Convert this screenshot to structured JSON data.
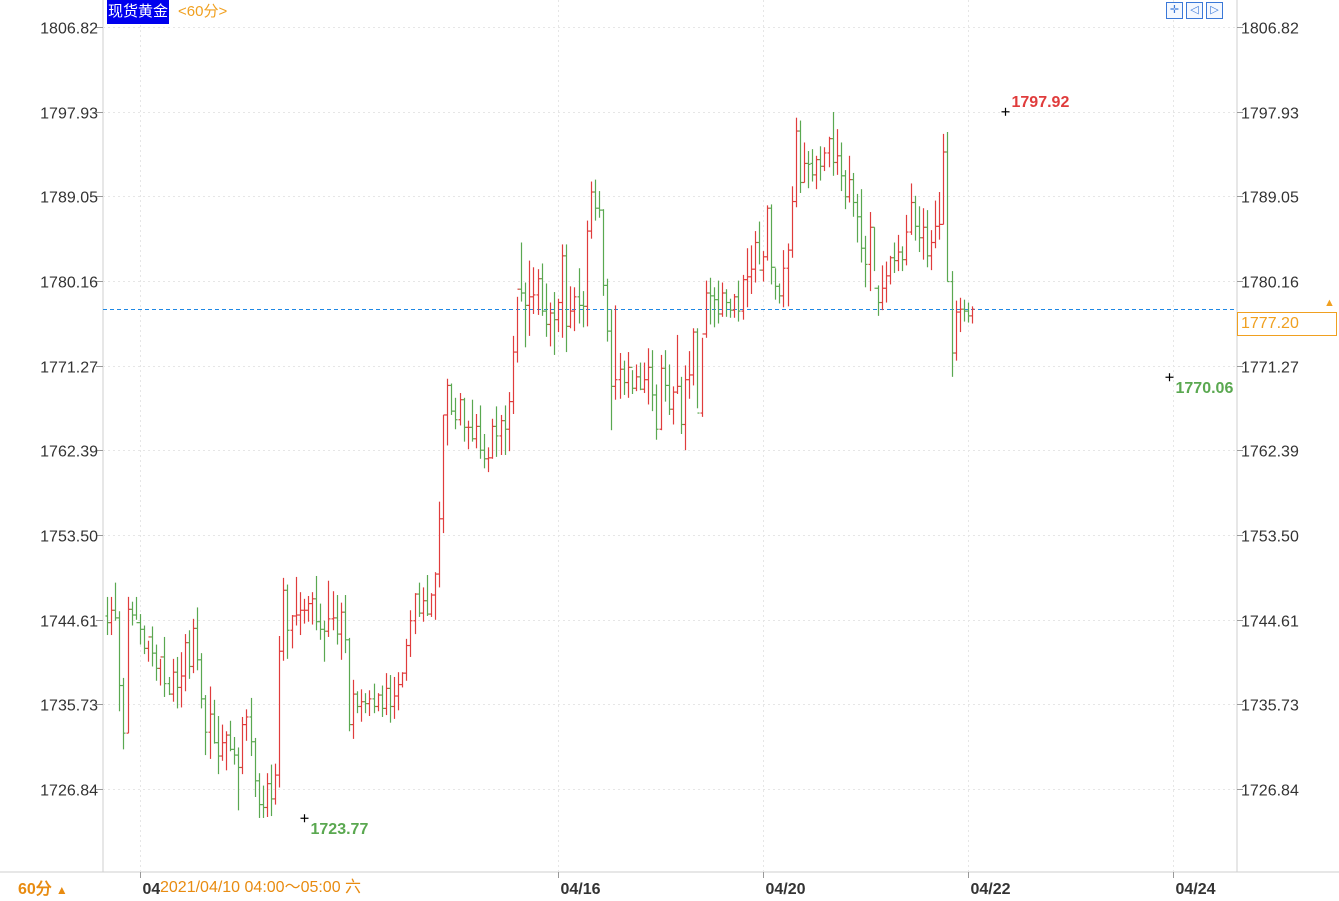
{
  "header": {
    "instrument_label": "现货黄金",
    "period_link": "<60分>",
    "toolbar_icons": [
      "crosshair-icon",
      "prev-icon",
      "next-icon"
    ]
  },
  "footer": {
    "period_selector": "60分",
    "period_arrow": "▲",
    "hover_time": "2021/04/10 04:00～05:00 六"
  },
  "current_price": {
    "label": "1777.20",
    "value": 1777.2,
    "color": "#f0a020"
  },
  "colors": {
    "up": "#e03c3c",
    "down": "#5aa850",
    "grid": "#e6e6e6",
    "current_line": "#1e88e5",
    "axis_text": "#333333",
    "high_label": "#e03c3c",
    "low_label": "#5aa850"
  },
  "chart_data": {
    "type": "ohlc",
    "title": "现货黄金",
    "interval": "60分",
    "ylim": [
      1717.9,
      1806.82
    ],
    "y_ticks": [
      1806.82,
      1797.93,
      1789.05,
      1780.16,
      1771.27,
      1762.39,
      1753.5,
      1744.61,
      1735.73,
      1726.84
    ],
    "y_tick_labels": [
      "1806.82",
      "1797.93",
      "1789.05",
      "1780.16",
      "1771.27",
      "1762.39",
      "1753.50",
      "1744.61",
      "1735.73",
      "1726.84"
    ],
    "x_labels": [
      {
        "label": "04",
        "bar": 8
      },
      {
        "label": "04/16",
        "bar": 110
      },
      {
        "label": "04/20",
        "bar": 160
      },
      {
        "label": "04/22",
        "bar": 210
      },
      {
        "label": "04/24",
        "bar": 260
      }
    ],
    "annotations": [
      {
        "label": "1797.92",
        "value": 1797.92,
        "kind": "high",
        "bar": 219
      },
      {
        "label": "1770.06",
        "value": 1770.06,
        "kind": "low",
        "bar": 259
      },
      {
        "label": "1723.77",
        "value": 1723.77,
        "kind": "low",
        "bar": 48
      }
    ],
    "bars": [
      [
        1745,
        1747,
        1743,
        1744.3
      ],
      [
        1744.3,
        1747,
        1743,
        1745.6
      ],
      [
        1745.6,
        1748.5,
        1744.5,
        1744.8
      ],
      [
        1744.8,
        1745.5,
        1735,
        1737.7
      ],
      [
        1737.7,
        1738.5,
        1731,
        1732.7
      ],
      [
        1732.7,
        1747,
        1732.7,
        1745.7
      ],
      [
        1745.7,
        1746.5,
        1744,
        1745.1
      ],
      [
        1745.1,
        1747,
        1744.6,
        1744.3
      ],
      [
        1744.3,
        1745.2,
        1742,
        1743.6
      ],
      [
        1743.6,
        1744,
        1741,
        1741.6
      ],
      [
        1741.6,
        1742.4,
        1740.2,
        1742.8
      ],
      [
        1742.8,
        1743.9,
        1739.7,
        1741.1
      ],
      [
        1741.1,
        1742,
        1738.2,
        1739.5
      ],
      [
        1739.5,
        1740.5,
        1737.7,
        1740.7
      ],
      [
        1740.7,
        1742.8,
        1736.5,
        1737.9
      ],
      [
        1737.9,
        1738.6,
        1736.7,
        1736.8
      ],
      [
        1736.8,
        1740.5,
        1736,
        1739.1
      ],
      [
        1739.1,
        1740.7,
        1735.3,
        1737.5
      ],
      [
        1737.5,
        1741.2,
        1735.4,
        1738.7
      ],
      [
        1738.7,
        1743.1,
        1737.1,
        1742.2
      ],
      [
        1742.2,
        1743.5,
        1738.4,
        1739.7
      ],
      [
        1739.7,
        1744.7,
        1739,
        1743.7
      ],
      [
        1743.7,
        1745.9,
        1739.3,
        1740.4
      ],
      [
        1740.4,
        1741.1,
        1735.3,
        1736.3
      ],
      [
        1736.3,
        1736.7,
        1730.4,
        1732.8
      ],
      [
        1732.8,
        1737.6,
        1730,
        1734.7
      ],
      [
        1734.7,
        1736.2,
        1731.6,
        1731.7
      ],
      [
        1731.7,
        1734.5,
        1728.4,
        1730.3
      ],
      [
        1730.3,
        1733.6,
        1729.8,
        1731.7
      ],
      [
        1731.7,
        1732.9,
        1728.8,
        1732.5
      ],
      [
        1732.5,
        1734,
        1730.8,
        1731
      ],
      [
        1731,
        1732.3,
        1729.4,
        1730.4
      ],
      [
        1730.4,
        1731.2,
        1724.6,
        1729.1
      ],
      [
        1729.1,
        1734.4,
        1728.4,
        1733.6
      ],
      [
        1733.6,
        1735.2,
        1731.9,
        1734.4
      ],
      [
        1734.4,
        1736.4,
        1730.3,
        1731.8
      ],
      [
        1731.8,
        1732.2,
        1726,
        1727.7
      ],
      [
        1727.7,
        1728.5,
        1723.8,
        1725.2
      ],
      [
        1725.2,
        1727.2,
        1723.8,
        1724.9
      ],
      [
        1724.9,
        1728.5,
        1723.9,
        1727.4
      ],
      [
        1727.4,
        1729.4,
        1724,
        1725.8
      ],
      [
        1725.8,
        1729.5,
        1725.2,
        1728.3
      ],
      [
        1728.3,
        1742.9,
        1727,
        1741.3
      ],
      [
        1741.3,
        1749,
        1740.3,
        1747.7
      ],
      [
        1747.7,
        1748.3,
        1740.5,
        1743.5
      ],
      [
        1743.5,
        1745.1,
        1741.6,
        1745
      ],
      [
        1745,
        1749.1,
        1744,
        1745.1
      ],
      [
        1745.1,
        1747.5,
        1743,
        1745.6
      ],
      [
        1745.6,
        1746.8,
        1744.2,
        1745.6
      ],
      [
        1745.6,
        1747.1,
        1744.4,
        1746.3
      ],
      [
        1746.3,
        1747.5,
        1744.1,
        1746.8
      ],
      [
        1746.8,
        1749.2,
        1743.5,
        1744.4
      ],
      [
        1744.4,
        1746.3,
        1742.5,
        1743.6
      ],
      [
        1743.6,
        1744.5,
        1740.2,
        1743.4
      ],
      [
        1743.4,
        1748.7,
        1742.8,
        1744.7
      ],
      [
        1744.7,
        1747.6,
        1743.5,
        1744.8
      ],
      [
        1744.8,
        1747.2,
        1742,
        1743.1
      ],
      [
        1743.1,
        1746.4,
        1740.4,
        1745.4
      ],
      [
        1745.4,
        1747.2,
        1741.1,
        1742.5
      ],
      [
        1742.5,
        1742.7,
        1732.9,
        1733.6
      ],
      [
        1733.6,
        1738.3,
        1732.1,
        1736.8
      ],
      [
        1736.8,
        1737.1,
        1734.8,
        1735.5
      ],
      [
        1735.5,
        1737.3,
        1733.9,
        1736
      ],
      [
        1736,
        1736.9,
        1734.8,
        1735.8
      ],
      [
        1735.8,
        1737.2,
        1734.5,
        1736.3
      ],
      [
        1736.3,
        1737.9,
        1734.8,
        1735.5
      ],
      [
        1735.5,
        1736.9,
        1735,
        1736.7
      ],
      [
        1736.7,
        1737.7,
        1734.4,
        1735.3
      ],
      [
        1735.3,
        1739,
        1734.6,
        1737.4
      ],
      [
        1737.4,
        1738.8,
        1733.8,
        1735.5
      ],
      [
        1735.5,
        1738.6,
        1734.2,
        1736.6
      ],
      [
        1736.6,
        1739.1,
        1735.1,
        1737.8
      ],
      [
        1737.8,
        1739.1,
        1737.5,
        1739
      ],
      [
        1739,
        1742.6,
        1738.2,
        1741.9
      ],
      [
        1741.9,
        1745.6,
        1740.7,
        1744.5
      ],
      [
        1744.5,
        1747.4,
        1743.1,
        1747.3
      ],
      [
        1747.3,
        1748.5,
        1744.9,
        1745.3
      ],
      [
        1745.3,
        1748,
        1744.4,
        1746.6
      ],
      [
        1746.6,
        1749.3,
        1745,
        1745.2
      ],
      [
        1745.2,
        1747.4,
        1744.9,
        1747.2
      ],
      [
        1747.2,
        1749.6,
        1744.6,
        1749.4
      ],
      [
        1749.4,
        1757,
        1748,
        1755.2
      ],
      [
        1755.2,
        1766.1,
        1753.7,
        1766.1
      ],
      [
        1766.1,
        1769.9,
        1762.9,
        1769.2
      ],
      [
        1769.2,
        1769.4,
        1766.1,
        1766.5
      ],
      [
        1766.5,
        1767.9,
        1764.6,
        1765.6
      ],
      [
        1765.6,
        1768.4,
        1765,
        1767.7
      ],
      [
        1767.7,
        1767.9,
        1763.3,
        1764.8
      ],
      [
        1764.8,
        1765.5,
        1762.5,
        1764.8
      ],
      [
        1764.8,
        1767.7,
        1763.3,
        1763.6
      ],
      [
        1763.6,
        1766.2,
        1762.6,
        1764.9
      ],
      [
        1764.9,
        1767.1,
        1761.5,
        1762.4
      ],
      [
        1762.4,
        1764.1,
        1760.5,
        1761.5
      ],
      [
        1761.5,
        1762.7,
        1760.1,
        1761.6
      ],
      [
        1761.6,
        1765.7,
        1761.5,
        1764.9
      ],
      [
        1764.9,
        1767,
        1761.7,
        1763.9
      ],
      [
        1763.9,
        1766.1,
        1761.9,
        1765.5
      ],
      [
        1765.5,
        1767.1,
        1761.9,
        1764.6
      ],
      [
        1764.6,
        1768.5,
        1762.3,
        1767.5
      ],
      [
        1767.5,
        1774.4,
        1766.2,
        1772.7
      ],
      [
        1772.7,
        1778.5,
        1771.6,
        1779.3
      ],
      [
        1779.3,
        1784.2,
        1778,
        1778.9
      ],
      [
        1778.9,
        1780,
        1773.2,
        1777.6
      ],
      [
        1777.6,
        1782.3,
        1774.4,
        1778.5
      ],
      [
        1778.5,
        1781.6,
        1776.7,
        1778.7
      ],
      [
        1778.7,
        1781.4,
        1776.6,
        1780.4
      ],
      [
        1780.4,
        1782,
        1776.5,
        1777
      ],
      [
        1777,
        1779.9,
        1774.3,
        1775.6
      ],
      [
        1775.6,
        1777.9,
        1773.3,
        1776.8
      ],
      [
        1776.8,
        1779,
        1772.4,
        1776.1
      ],
      [
        1776.1,
        1778.3,
        1774.8,
        1777.9
      ],
      [
        1777.9,
        1784,
        1774.2,
        1782.8
      ],
      [
        1782.8,
        1784,
        1772.7,
        1775.4
      ],
      [
        1775.4,
        1779.6,
        1775.2,
        1777
      ],
      [
        1777,
        1779.5,
        1774.9,
        1778.5
      ],
      [
        1778.5,
        1781.5,
        1775.7,
        1777.6
      ],
      [
        1777.6,
        1779.1,
        1775.3,
        1777.5
      ],
      [
        1777.5,
        1786.5,
        1775.4,
        1785.4
      ],
      [
        1785.4,
        1790.6,
        1784.6,
        1789.5
      ],
      [
        1789.5,
        1790.8,
        1786.5,
        1787.8
      ],
      [
        1787.8,
        1789.6,
        1786.8,
        1787.6
      ],
      [
        1787.6,
        1787.7,
        1778.6,
        1779.7
      ],
      [
        1779.7,
        1780.4,
        1773.8,
        1774.9
      ],
      [
        1774.9,
        1777.2,
        1764.5,
        1769.1
      ],
      [
        1769.1,
        1777.6,
        1767.7,
        1769.8
      ],
      [
        1769.8,
        1772.6,
        1767.8,
        1770.9
      ],
      [
        1770.9,
        1771.8,
        1768.2,
        1769.5
      ],
      [
        1769.5,
        1772.7,
        1767.9,
        1771.1
      ],
      [
        1771.1,
        1770.8,
        1768.3,
        1768.9
      ],
      [
        1768.9,
        1771.4,
        1768.6,
        1770.1
      ],
      [
        1770.1,
        1771.6,
        1768.7,
        1768.8
      ],
      [
        1768.8,
        1771.6,
        1768.4,
        1769.8
      ],
      [
        1769.8,
        1773.1,
        1767.2,
        1771.1
      ],
      [
        1771.1,
        1772.9,
        1766.5,
        1768.2
      ],
      [
        1768.2,
        1769.3,
        1763.5,
        1764.6
      ],
      [
        1764.6,
        1772.4,
        1764.5,
        1771
      ],
      [
        1771,
        1772.9,
        1767.5,
        1769.2
      ],
      [
        1769.2,
        1771.4,
        1766.1,
        1766.7
      ],
      [
        1766.7,
        1769.1,
        1765.1,
        1768.5
      ],
      [
        1768.5,
        1774.5,
        1768.3,
        1769.1
      ],
      [
        1769.1,
        1770.1,
        1764.1,
        1765.1
      ],
      [
        1765.1,
        1771.3,
        1762.4,
        1769.8
      ],
      [
        1769.8,
        1772.8,
        1767.8,
        1770.3
      ],
      [
        1770.3,
        1775.2,
        1769.2,
        1774.8
      ],
      [
        1774.8,
        1775.2,
        1766.8,
        1766.3
      ],
      [
        1766.3,
        1774.2,
        1765.9,
        1774.6
      ],
      [
        1774.6,
        1780.2,
        1774.2,
        1778.9
      ],
      [
        1778.9,
        1780.5,
        1775.6,
        1778.6
      ],
      [
        1778.6,
        1779.5,
        1775.3,
        1778.2
      ],
      [
        1778.2,
        1780.2,
        1775.7,
        1776.7
      ],
      [
        1776.7,
        1780,
        1776.4,
        1778.9
      ],
      [
        1778.9,
        1779.3,
        1776.4,
        1777.9
      ],
      [
        1777.9,
        1778.3,
        1776.3,
        1777.1
      ],
      [
        1777.1,
        1778.8,
        1776.3,
        1778.5
      ],
      [
        1778.5,
        1780.2,
        1775.9,
        1777
      ],
      [
        1777,
        1780.8,
        1776.1,
        1780.3
      ],
      [
        1780.3,
        1783.6,
        1777.4,
        1780.6
      ],
      [
        1780.6,
        1783.9,
        1778.8,
        1781.4
      ],
      [
        1781.4,
        1785.4,
        1780,
        1784.2
      ],
      [
        1784.2,
        1786.4,
        1781.9,
        1781.3
      ],
      [
        1781.3,
        1783.3,
        1780.1,
        1782.7
      ],
      [
        1782.7,
        1788.1,
        1782.3,
        1787.8
      ],
      [
        1787.8,
        1788.2,
        1779.8,
        1781.6
      ],
      [
        1781.6,
        1781.5,
        1778.2,
        1779.6
      ],
      [
        1779.6,
        1779.9,
        1777.8,
        1778.6
      ],
      [
        1778.6,
        1783.4,
        1777.4,
        1781.5
      ],
      [
        1781.5,
        1784.1,
        1777.5,
        1783.4
      ],
      [
        1783.4,
        1790.1,
        1782.6,
        1788.5
      ],
      [
        1788.5,
        1797.3,
        1787.9,
        1795.9
      ],
      [
        1795.9,
        1797,
        1789.4,
        1790.5
      ],
      [
        1790.5,
        1794.7,
        1790.5,
        1792.5
      ],
      [
        1792.5,
        1793.8,
        1789.9,
        1792.4
      ],
      [
        1792.5,
        1794,
        1790.6,
        1791.3
      ],
      [
        1791.3,
        1793.3,
        1789.8,
        1792.9
      ],
      [
        1792.9,
        1794.3,
        1790.7,
        1792.2
      ],
      [
        1792.2,
        1794.2,
        1791.7,
        1793.6
      ],
      [
        1793.6,
        1795.3,
        1792.1,
        1795.1
      ],
      [
        1795.1,
        1797.9,
        1791.2,
        1792.6
      ],
      [
        1792.6,
        1796.1,
        1791.3,
        1793.3
      ],
      [
        1793.3,
        1794.7,
        1789.6,
        1791.2
      ],
      [
        1791.2,
        1791.8,
        1787.7,
        1789
      ],
      [
        1789,
        1793.3,
        1788.4,
        1790.8
      ],
      [
        1790.8,
        1791.5,
        1786.9,
        1788.4
      ],
      [
        1788.4,
        1789.3,
        1784.2,
        1786.9
      ],
      [
        1786.9,
        1789.8,
        1782.1,
        1783.6
      ],
      [
        1783.6,
        1784.9,
        1779.5,
        1781.9
      ],
      [
        1781.9,
        1787.4,
        1779.1,
        1785.8
      ],
      [
        1785.8,
        1785.8,
        1781.2,
        1779.4
      ],
      [
        1779.4,
        1779.7,
        1776.5,
        1777.9
      ],
      [
        1777.9,
        1781.8,
        1777.1,
        1779.4
      ],
      [
        1779.4,
        1782.2,
        1777.9,
        1780.7
      ],
      [
        1780.7,
        1782.8,
        1779.8,
        1782.6
      ],
      [
        1782.6,
        1784.2,
        1781,
        1782.3
      ],
      [
        1782.3,
        1785,
        1781.2,
        1783.2
      ],
      [
        1783.2,
        1783.8,
        1781.2,
        1782.4
      ],
      [
        1782.4,
        1787.1,
        1781.8,
        1785.3
      ],
      [
        1785.3,
        1790.4,
        1785,
        1788.4
      ],
      [
        1788.4,
        1789.1,
        1784.4,
        1785.9
      ],
      [
        1785.9,
        1788,
        1783.2,
        1784.7
      ],
      [
        1784.7,
        1787.8,
        1782.4,
        1785.8
      ],
      [
        1785.8,
        1787.6,
        1781.6,
        1782.8
      ],
      [
        1782.8,
        1785.5,
        1781.3,
        1784.2
      ],
      [
        1784.2,
        1788.6,
        1783.6,
        1785.9
      ],
      [
        1785.9,
        1789.5,
        1784.5,
        1786.1
      ],
      [
        1786.1,
        1795.6,
        1786.1,
        1793.7
      ],
      [
        1793.7,
        1795.8,
        1780.1,
        1780.1
      ],
      [
        1780.1,
        1781.2,
        1770.1,
        1772.6
      ],
      [
        1772.6,
        1778.1,
        1771.8,
        1776.9
      ],
      [
        1776.9,
        1778.4,
        1774.8,
        1777.2
      ],
      [
        1777.2,
        1778.2,
        1775.9,
        1777
      ],
      [
        1777,
        1777.9,
        1775.8,
        1776.5
      ],
      [
        1776.5,
        1777.5,
        1775.7,
        1777.2
      ]
    ]
  }
}
